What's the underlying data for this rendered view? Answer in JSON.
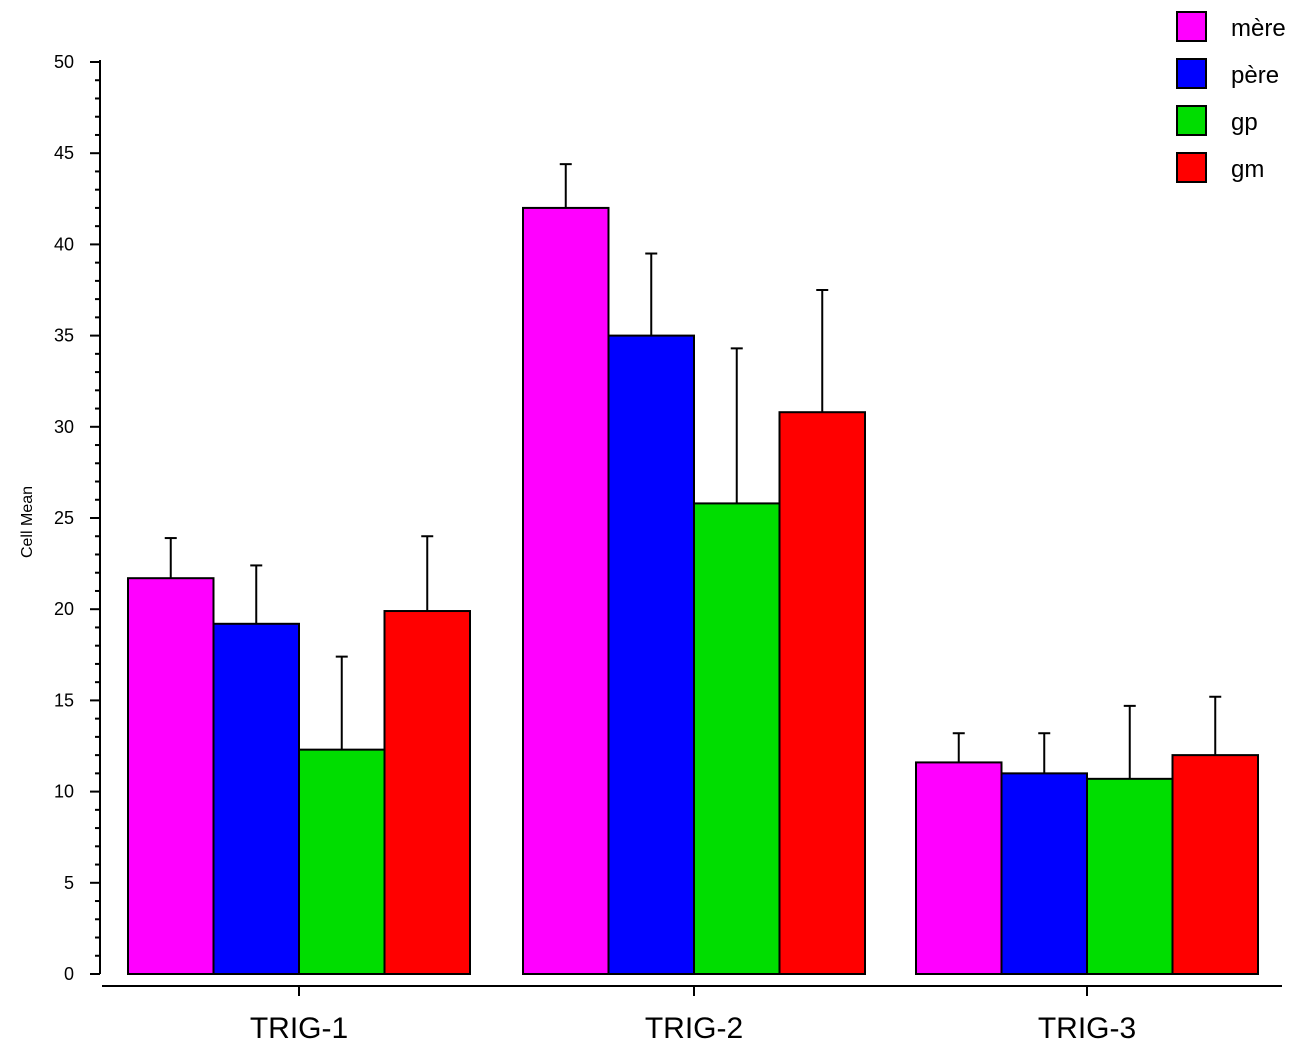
{
  "chart_data": {
    "type": "bar",
    "title": "",
    "xlabel": "",
    "ylabel": "Cell Mean",
    "ylim": [
      0,
      50
    ],
    "yticks": [
      0,
      5,
      10,
      15,
      20,
      25,
      30,
      35,
      40,
      45,
      50
    ],
    "categories": [
      "TRIG-1",
      "TRIG-2",
      "TRIG-3"
    ],
    "series": [
      {
        "name": "mère",
        "color": "#ff00ff",
        "values": [
          21.7,
          42.0,
          11.6
        ],
        "error": [
          2.2,
          2.4,
          1.6
        ]
      },
      {
        "name": "père",
        "color": "#0000ff",
        "values": [
          19.2,
          35.0,
          11.0
        ],
        "error": [
          3.2,
          4.5,
          2.2
        ]
      },
      {
        "name": "gp",
        "color": "#00dd00",
        "values": [
          12.3,
          25.8,
          10.7
        ],
        "error": [
          5.1,
          8.5,
          4.0
        ]
      },
      {
        "name": "gm",
        "color": "#ff0000",
        "values": [
          19.9,
          30.8,
          12.0
        ],
        "error": [
          4.1,
          6.7,
          3.2
        ]
      }
    ],
    "grid": false,
    "legend_position": "top-right"
  }
}
